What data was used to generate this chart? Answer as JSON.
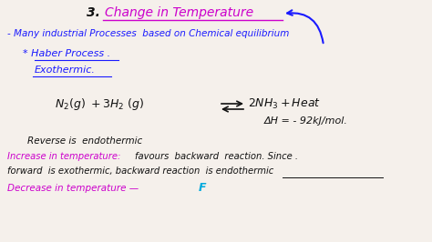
{
  "bg_color": "#f5f0eb",
  "title_num": "3.",
  "title_text": "Change in Temperature",
  "line1": "- Many industrial Processes  based on Chemical equilibrium",
  "line2": "* Haber Process .",
  "line3": "Exothermic.",
  "eq_left": "N₂(g) +3H₂ (g)",
  "eq_right": "2NH₃ + Heat",
  "delta_h": "ΔH = - 92kJ/mol.",
  "reverse_label": "Reverse is  endothermic",
  "increase_label": "Increase in temperature: favours  backward  reaction. Since .",
  "forward_label": "forward  is exothermic, backward reaction  is endothermic",
  "decrease_label": "Decrease in temperature — F",
  "color_magenta": "#cc00cc",
  "color_blue": "#1a1aff",
  "color_black": "#111111",
  "color_cyan": "#00aadd"
}
